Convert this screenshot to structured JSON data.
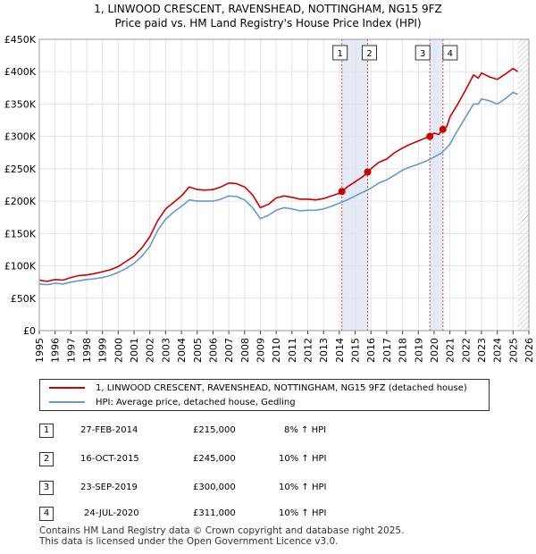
{
  "title_line1": "1, LINWOOD CRESCENT, RAVENSHEAD, NOTTINGHAM, NG15 9FZ",
  "title_line2": "Price paid vs. HM Land Registry's House Price Index (HPI)",
  "chart_data": {
    "type": "line",
    "ylim": [
      0,
      450000
    ],
    "xlim": [
      1995,
      2026
    ],
    "y_ticks": [
      0,
      50000,
      100000,
      150000,
      200000,
      250000,
      300000,
      350000,
      400000,
      450000
    ],
    "y_tick_labels": [
      "£0",
      "£50K",
      "£100K",
      "£150K",
      "£200K",
      "£250K",
      "£300K",
      "£350K",
      "£400K",
      "£450K"
    ],
    "x_ticks": [
      1995,
      1996,
      1997,
      1998,
      1999,
      2000,
      2001,
      2002,
      2003,
      2004,
      2005,
      2006,
      2007,
      2008,
      2009,
      2010,
      2011,
      2012,
      2013,
      2014,
      2015,
      2016,
      2017,
      2018,
      2019,
      2020,
      2021,
      2022,
      2023,
      2024,
      2025,
      2026
    ],
    "grid": true,
    "hatch_from": 2025.3,
    "series": [
      {
        "name": "1, LINWOOD CRESCENT, RAVENSHEAD, NOTTINGHAM, NG15 9FZ (detached house)",
        "color": "#cc0000",
        "x": [
          1995.0,
          1995.5,
          1996.0,
          1996.5,
          1997.0,
          1997.5,
          1998.0,
          1998.5,
          1999.0,
          1999.5,
          2000.0,
          2000.5,
          2001.0,
          2001.5,
          2002.0,
          2002.5,
          2003.0,
          2003.5,
          2004.0,
          2004.5,
          2005.0,
          2005.5,
          2006.0,
          2006.5,
          2007.0,
          2007.5,
          2008.0,
          2008.5,
          2009.0,
          2009.5,
          2010.0,
          2010.5,
          2011.0,
          2011.5,
          2012.0,
          2012.5,
          2013.0,
          2013.5,
          2014.0,
          2014.16,
          2014.5,
          2015.0,
          2015.5,
          2015.79,
          2016.0,
          2016.5,
          2017.0,
          2017.5,
          2018.0,
          2018.5,
          2019.0,
          2019.5,
          2019.73,
          2020.0,
          2020.3,
          2020.56,
          2020.8,
          2021.0,
          2021.5,
          2022.0,
          2022.5,
          2022.8,
          2023.0,
          2023.5,
          2024.0,
          2024.5,
          2025.0,
          2025.3
        ],
        "values": [
          78000,
          76000,
          79000,
          78000,
          82000,
          85000,
          86000,
          88000,
          91000,
          94000,
          99000,
          107000,
          115000,
          128000,
          145000,
          170000,
          188000,
          198000,
          208000,
          222000,
          218000,
          217000,
          218000,
          222000,
          228000,
          227000,
          222000,
          210000,
          190000,
          195000,
          205000,
          208000,
          206000,
          203000,
          203000,
          202000,
          204000,
          208000,
          212000,
          215000,
          222000,
          230000,
          238000,
          245000,
          250000,
          260000,
          265000,
          275000,
          282000,
          288000,
          293000,
          298000,
          300000,
          305000,
          303000,
          311000,
          315000,
          330000,
          350000,
          372000,
          395000,
          390000,
          398000,
          392000,
          388000,
          396000,
          405000,
          400000
        ]
      },
      {
        "name": "HPI: Average price, detached house, Gedling",
        "color": "#6699cc",
        "x": [
          1995.0,
          1995.5,
          1996.0,
          1996.5,
          1997.0,
          1997.5,
          1998.0,
          1998.5,
          1999.0,
          1999.5,
          2000.0,
          2000.5,
          2001.0,
          2001.5,
          2002.0,
          2002.5,
          2003.0,
          2003.5,
          2004.0,
          2004.5,
          2005.0,
          2005.5,
          2006.0,
          2006.5,
          2007.0,
          2007.5,
          2008.0,
          2008.5,
          2009.0,
          2009.5,
          2010.0,
          2010.5,
          2011.0,
          2011.5,
          2012.0,
          2012.5,
          2013.0,
          2013.5,
          2014.0,
          2014.5,
          2015.0,
          2015.5,
          2016.0,
          2016.5,
          2017.0,
          2017.5,
          2018.0,
          2018.5,
          2019.0,
          2019.5,
          2020.0,
          2020.5,
          2021.0,
          2021.5,
          2022.0,
          2022.5,
          2022.8,
          2023.0,
          2023.5,
          2024.0,
          2024.5,
          2025.0,
          2025.3
        ],
        "values": [
          72000,
          71000,
          73000,
          72000,
          75000,
          77000,
          79000,
          80000,
          82000,
          85000,
          90000,
          96000,
          104000,
          115000,
          130000,
          155000,
          172000,
          183000,
          192000,
          202000,
          200000,
          200000,
          200000,
          203000,
          208000,
          207000,
          202000,
          190000,
          173000,
          178000,
          186000,
          190000,
          188000,
          185000,
          186000,
          186000,
          188000,
          192000,
          197000,
          202000,
          208000,
          214000,
          220000,
          228000,
          233000,
          240000,
          248000,
          253000,
          257000,
          262000,
          268000,
          275000,
          288000,
          310000,
          330000,
          350000,
          350000,
          358000,
          355000,
          350000,
          358000,
          368000,
          365000
        ]
      }
    ],
    "sales": [
      {
        "label": "1",
        "x": 2014.16,
        "value": 215000
      },
      {
        "label": "2",
        "x": 2015.79,
        "value": 245000
      },
      {
        "label": "3",
        "x": 2019.73,
        "value": 300000
      },
      {
        "label": "4",
        "x": 2020.56,
        "value": 311000
      }
    ],
    "shaded_spans": [
      [
        2014.16,
        2015.79
      ],
      [
        2019.73,
        2020.56
      ]
    ]
  },
  "legend": {
    "red_label": "1, LINWOOD CRESCENT, RAVENSHEAD, NOTTINGHAM, NG15 9FZ (detached house)",
    "blue_label": "HPI: Average price, detached house, Gedling"
  },
  "transactions": [
    {
      "num": "1",
      "date": "27-FEB-2014",
      "price": "£215,000",
      "hpi": "8% ↑ HPI"
    },
    {
      "num": "2",
      "date": "16-OCT-2015",
      "price": "£245,000",
      "hpi": "10% ↑ HPI"
    },
    {
      "num": "3",
      "date": "23-SEP-2019",
      "price": "£300,000",
      "hpi": "10% ↑ HPI"
    },
    {
      "num": "4",
      "date": "24-JUL-2020",
      "price": "£311,000",
      "hpi": "10% ↑ HPI"
    }
  ],
  "footer_line1": "Contains HM Land Registry data © Crown copyright and database right 2025.",
  "footer_line2": "This data is licensed under the Open Government Licence v3.0."
}
